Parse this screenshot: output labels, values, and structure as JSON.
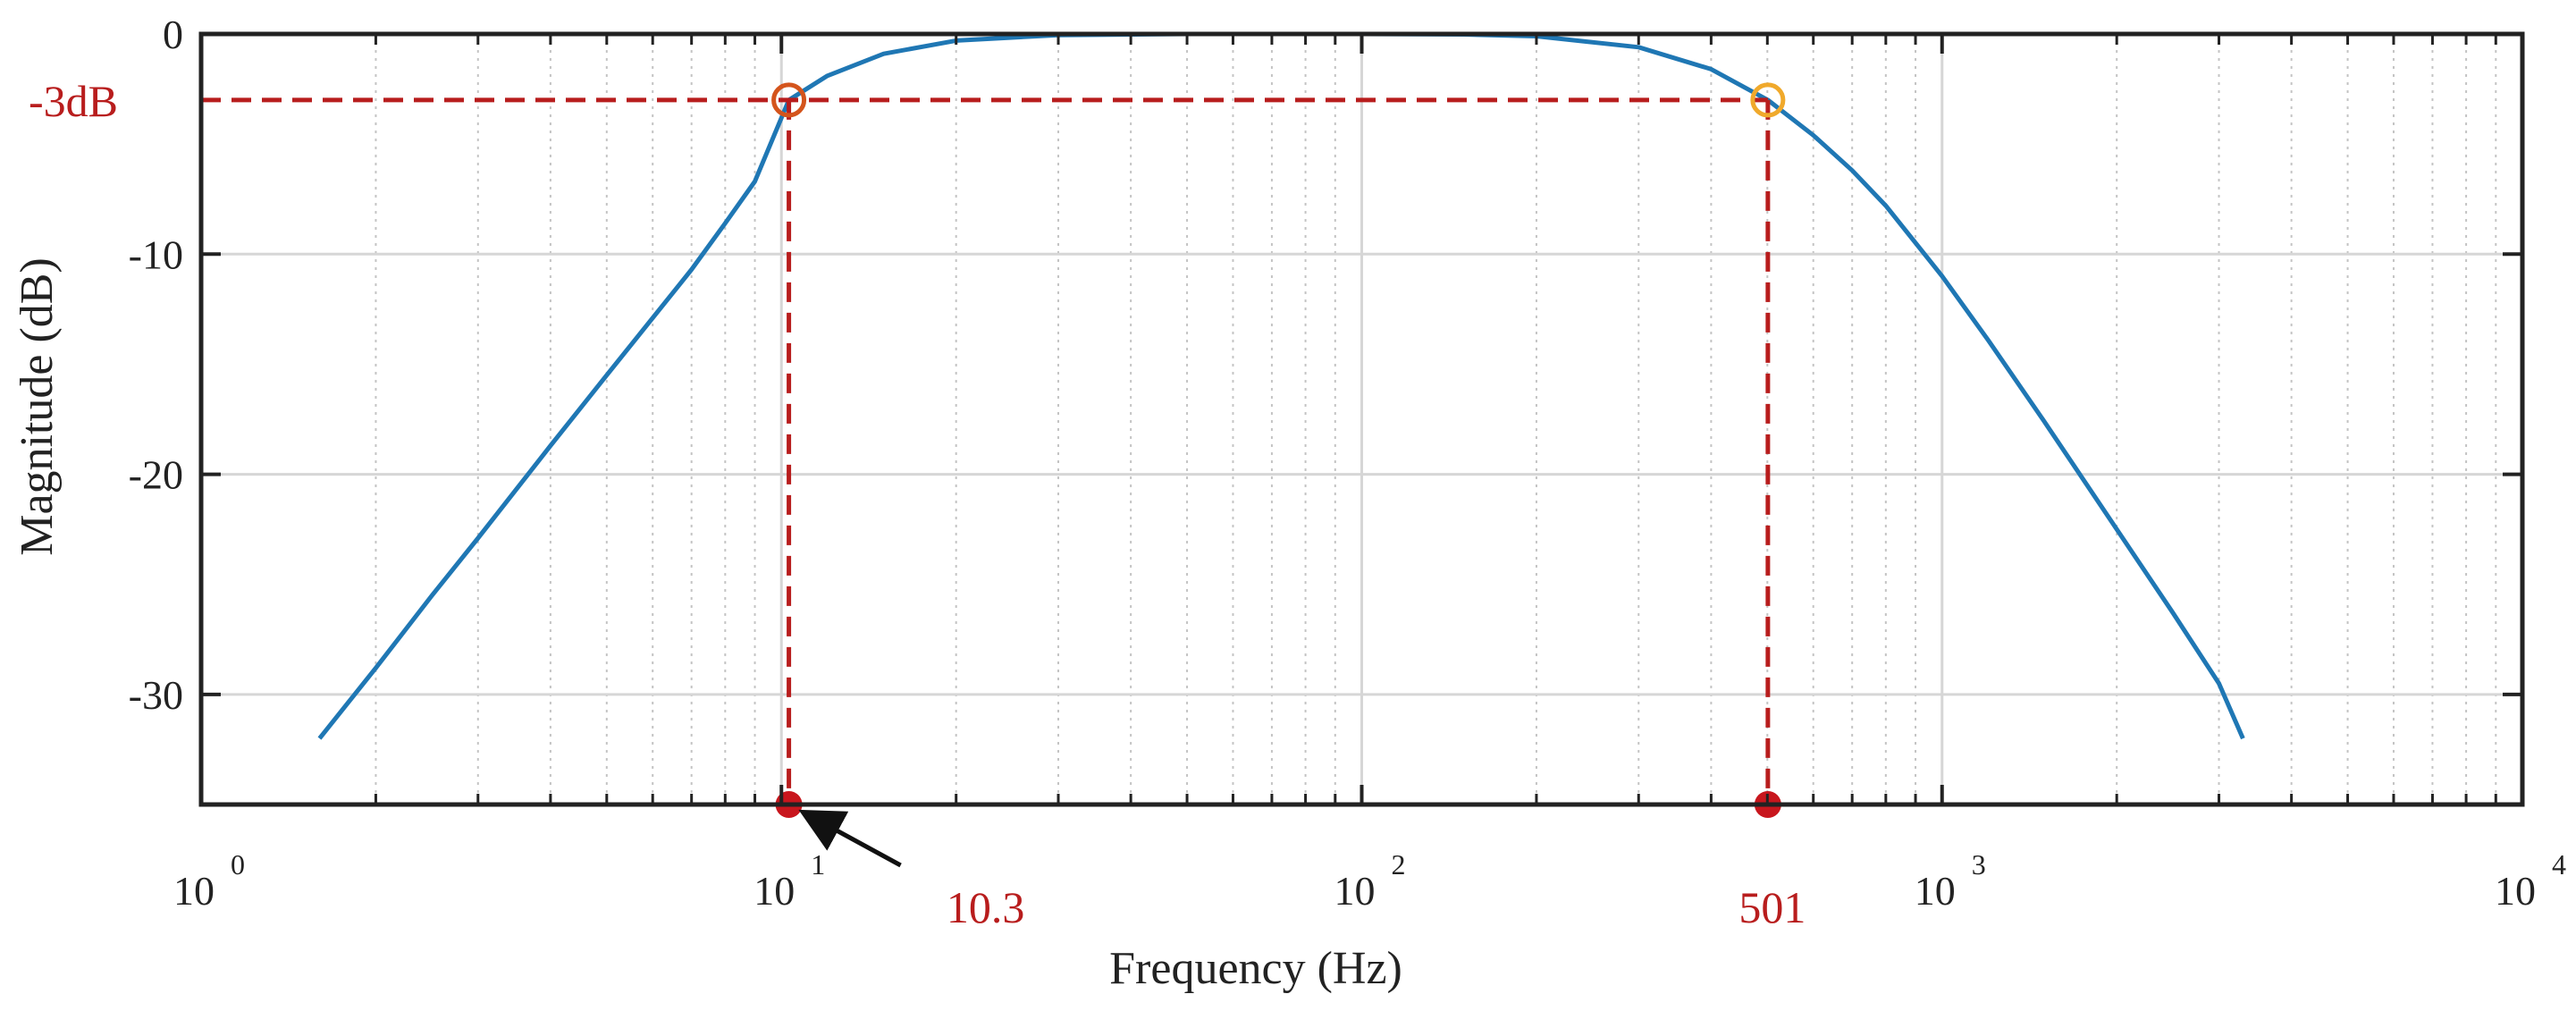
{
  "chart_data": {
    "type": "line",
    "xlabel": "Frequency (Hz)",
    "ylabel": "Magnitude (dB)",
    "x_scale": "log",
    "xlim": [
      1,
      10000
    ],
    "ylim": [
      -35,
      0
    ],
    "x_ticks": [
      {
        "base": "10",
        "exp": "0",
        "value": 1
      },
      {
        "base": "10",
        "exp": "1",
        "value": 10
      },
      {
        "base": "10",
        "exp": "2",
        "value": 100
      },
      {
        "base": "10",
        "exp": "3",
        "value": 1000
      },
      {
        "base": "10",
        "exp": "4",
        "value": 10000
      }
    ],
    "y_ticks": [
      {
        "label": "0",
        "value": 0
      },
      {
        "label": "-10",
        "value": -10
      },
      {
        "label": "-20",
        "value": -20
      },
      {
        "label": "-30",
        "value": -30
      }
    ],
    "grid": true,
    "series": [
      {
        "points": [
          [
            1.6,
            -32.0
          ],
          [
            2.0,
            -28.8
          ],
          [
            2.5,
            -25.5
          ],
          [
            3.0,
            -22.9
          ],
          [
            4.0,
            -18.7
          ],
          [
            5.0,
            -15.5
          ],
          [
            6.0,
            -12.9
          ],
          [
            7.0,
            -10.7
          ],
          [
            8.0,
            -8.6
          ],
          [
            9.0,
            -6.7
          ],
          [
            10.3,
            -3.0
          ],
          [
            12.0,
            -1.9
          ],
          [
            15.0,
            -0.9
          ],
          [
            20.0,
            -0.3
          ],
          [
            30.0,
            -0.05
          ],
          [
            50.0,
            0.0
          ],
          [
            100.0,
            0.0
          ],
          [
            150.0,
            -0.02
          ],
          [
            200.0,
            -0.1
          ],
          [
            300.0,
            -0.6
          ],
          [
            400.0,
            -1.6
          ],
          [
            501.0,
            -3.0
          ],
          [
            600.0,
            -4.6
          ],
          [
            700.0,
            -6.2
          ],
          [
            800.0,
            -7.8
          ],
          [
            1000.0,
            -11.0
          ],
          [
            1200.0,
            -13.9
          ],
          [
            1500.0,
            -17.6
          ],
          [
            2000.0,
            -22.5
          ],
          [
            2500.0,
            -26.3
          ],
          [
            3000.0,
            -29.5
          ],
          [
            3300.0,
            -32.0
          ]
        ]
      }
    ],
    "annotations": {
      "level_label": "-3dB",
      "level_value": -3,
      "cutoffs": [
        {
          "x": 10.3,
          "label": "10.3",
          "marker_color": "#d4541c"
        },
        {
          "x": 501,
          "label": "501",
          "marker_color": "#f0a92b"
        }
      ]
    },
    "colors": {
      "line": "#1f77b4",
      "annotation": "#b81d1d",
      "axis": "#222222",
      "grid": "#d6d6d6"
    }
  }
}
